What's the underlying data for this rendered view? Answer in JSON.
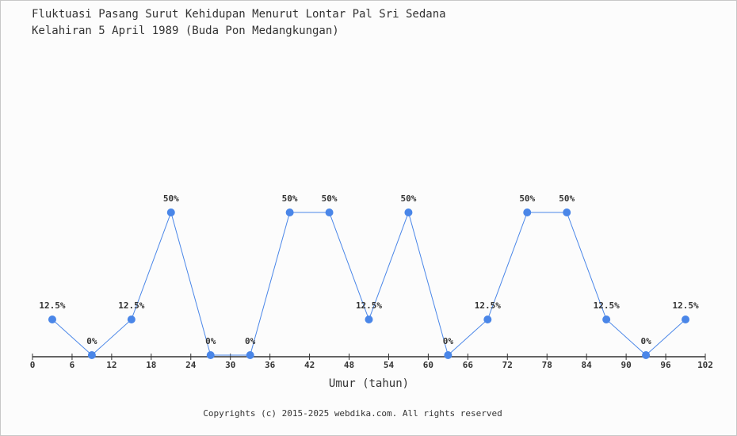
{
  "chart_data": {
    "type": "line",
    "title": "Fluktuasi Pasang Surut Kehidupan Menurut Lontar Pal Sri Sedana",
    "subtitle": "Kelahiran 5 April 1989 (Buda Pon Medangkungan)",
    "xlabel": "Umur (tahun)",
    "ylabel": "",
    "xlim": [
      0,
      102
    ],
    "ylim": [
      0,
      100
    ],
    "xticks": [
      0,
      6,
      12,
      18,
      24,
      30,
      36,
      42,
      48,
      54,
      60,
      66,
      72,
      78,
      84,
      90,
      96,
      102
    ],
    "x": [
      3,
      9,
      15,
      21,
      27,
      33,
      39,
      45,
      51,
      57,
      63,
      69,
      75,
      81,
      87,
      93,
      99
    ],
    "values": [
      12.5,
      0,
      12.5,
      50,
      0,
      0,
      50,
      50,
      12.5,
      50,
      0,
      12.5,
      50,
      50,
      12.5,
      0,
      12.5
    ],
    "data_labels": [
      "12.5%",
      "0%",
      "12.5%",
      "50%",
      "0%",
      "0%",
      "50%",
      "50%",
      "12.5%",
      "50%",
      "0%",
      "12.5%",
      "50%",
      "50%",
      "12.5%",
      "0%",
      "12.5%"
    ],
    "grid": false,
    "colors": {
      "line": "#4a86e8",
      "marker": "#4a86e8",
      "axis": "#333333"
    }
  },
  "footer": "Copyrights (c) 2015-2025 webdika.com. All rights reserved"
}
